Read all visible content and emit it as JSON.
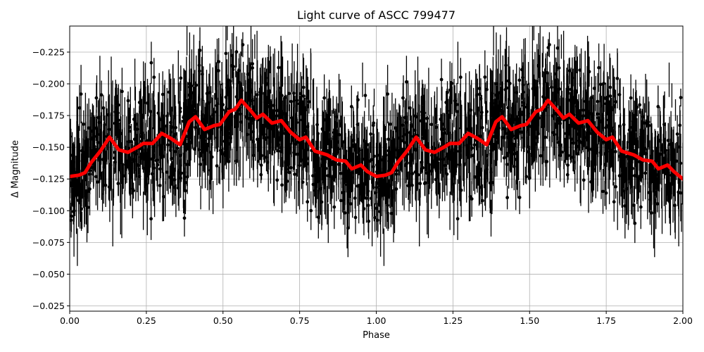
{
  "chart_data": {
    "type": "scatter",
    "title": "Light curve of ASCC 799477",
    "xlabel": "Phase",
    "ylabel": "Δ Magnitude",
    "xlim": [
      0.0,
      2.0
    ],
    "ylim": [
      -0.0225,
      -0.2475
    ],
    "y_inverted": true,
    "grid": true,
    "legend": null,
    "x_ticks": [
      "0.00",
      "0.25",
      "0.50",
      "0.75",
      "1.00",
      "1.25",
      "1.50",
      "1.75",
      "2.00"
    ],
    "x_tick_values": [
      0.0,
      0.25,
      0.5,
      0.75,
      1.0,
      1.25,
      1.5,
      1.75,
      2.0
    ],
    "y_ticks": [
      "−0.225",
      "−0.200",
      "−0.175",
      "−0.150",
      "−0.125",
      "−0.100",
      "−0.075",
      "−0.050",
      "−0.025"
    ],
    "y_tick_values": [
      -0.225,
      -0.2,
      -0.175,
      -0.15,
      -0.125,
      -0.1,
      -0.075,
      -0.05,
      -0.025
    ],
    "series": [
      {
        "name": "observations",
        "style": "black points with vertical error bars",
        "color": "#000000",
        "description": "Dense phase-folded photometry, values scattered roughly between -0.025 and -0.25, repeated for phase 0-1 and 1-2"
      },
      {
        "name": "binned mean",
        "style": "thick red line",
        "color": "#ff0000",
        "x": [
          0.0,
          0.03,
          0.05,
          0.07,
          0.1,
          0.13,
          0.16,
          0.19,
          0.22,
          0.24,
          0.27,
          0.3,
          0.33,
          0.36,
          0.39,
          0.41,
          0.44,
          0.47,
          0.49,
          0.52,
          0.54,
          0.56,
          0.59,
          0.61,
          0.63,
          0.66,
          0.69,
          0.72,
          0.75,
          0.77,
          0.8,
          0.84,
          0.87,
          0.9,
          0.92,
          0.95,
          0.97,
          1.0,
          1.03,
          1.05,
          1.07,
          1.1,
          1.13,
          1.16,
          1.19,
          1.22,
          1.24,
          1.27,
          1.3,
          1.33,
          1.36,
          1.39,
          1.41,
          1.44,
          1.47,
          1.49,
          1.52,
          1.54,
          1.56,
          1.59,
          1.61,
          1.63,
          1.66,
          1.69,
          1.72,
          1.75,
          1.77,
          1.8,
          1.84,
          1.87,
          1.9,
          1.92,
          1.95,
          1.97,
          2.0
        ],
        "values": [
          -0.127,
          -0.128,
          -0.13,
          -0.138,
          -0.147,
          -0.158,
          -0.148,
          -0.146,
          -0.15,
          -0.153,
          -0.153,
          -0.161,
          -0.157,
          -0.152,
          -0.17,
          -0.174,
          -0.164,
          -0.167,
          -0.168,
          -0.178,
          -0.18,
          -0.187,
          -0.179,
          -0.173,
          -0.176,
          -0.169,
          -0.171,
          -0.162,
          -0.156,
          -0.158,
          -0.147,
          -0.144,
          -0.14,
          -0.139,
          -0.133,
          -0.136,
          -0.131,
          -0.127,
          -0.128,
          -0.13,
          -0.138,
          -0.147,
          -0.158,
          -0.148,
          -0.146,
          -0.15,
          -0.153,
          -0.153,
          -0.161,
          -0.157,
          -0.152,
          -0.17,
          -0.174,
          -0.164,
          -0.167,
          -0.168,
          -0.178,
          -0.18,
          -0.187,
          -0.179,
          -0.173,
          -0.176,
          -0.169,
          -0.171,
          -0.162,
          -0.156,
          -0.158,
          -0.147,
          -0.144,
          -0.14,
          -0.139,
          -0.133,
          -0.136,
          -0.131,
          -0.125
        ]
      }
    ]
  },
  "colors": {
    "points": "#000000",
    "curve": "#ff0000",
    "grid": "#b0b0b0",
    "background": "#ffffff"
  }
}
